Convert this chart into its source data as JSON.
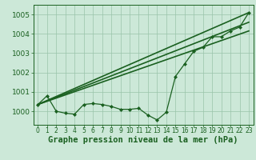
{
  "xlabel": "Graphe pression niveau de la mer (hPa)",
  "ylabel": "",
  "background_color": "#cce8d8",
  "plot_bg_color": "#cce8d8",
  "grid_color": "#99c4aa",
  "line_color": "#1a6020",
  "marker_color": "#1a6020",
  "ylim": [
    999.3,
    1005.5
  ],
  "xlim": [
    -0.5,
    23.5
  ],
  "yticks": [
    1000,
    1001,
    1002,
    1003,
    1004,
    1005
  ],
  "xticks": [
    0,
    1,
    2,
    3,
    4,
    5,
    6,
    7,
    8,
    9,
    10,
    11,
    12,
    13,
    14,
    15,
    16,
    17,
    18,
    19,
    20,
    21,
    22,
    23
  ],
  "xlabel_fontsize": 7.5,
  "ytick_fontsize": 6.5,
  "xtick_fontsize": 5.5,
  "main_series": {
    "x": [
      0,
      1,
      2,
      3,
      4,
      5,
      6,
      7,
      8,
      9,
      10,
      11,
      12,
      13,
      14,
      15,
      16,
      17,
      18,
      19,
      20,
      21,
      22,
      23
    ],
    "y": [
      1000.35,
      1000.8,
      1000.0,
      999.9,
      999.85,
      1000.35,
      1000.4,
      1000.35,
      1000.25,
      1000.1,
      1000.1,
      1000.15,
      999.8,
      999.55,
      999.95,
      1001.8,
      1002.45,
      1003.1,
      1003.3,
      1003.85,
      1003.85,
      1004.15,
      1004.35,
      1005.1
    ],
    "marker": "D",
    "markersize": 2.0,
    "linewidth": 0.9
  },
  "reg_lines": [
    {
      "x0": 0,
      "y0": 1000.35,
      "x1": 23,
      "y1": 1004.15
    },
    {
      "x0": 0,
      "y0": 1000.35,
      "x1": 23,
      "y1": 1005.1
    },
    {
      "x0": 0,
      "y0": 1000.35,
      "x1": 23,
      "y1": 1004.6
    }
  ],
  "reg_linewidth": 1.2
}
